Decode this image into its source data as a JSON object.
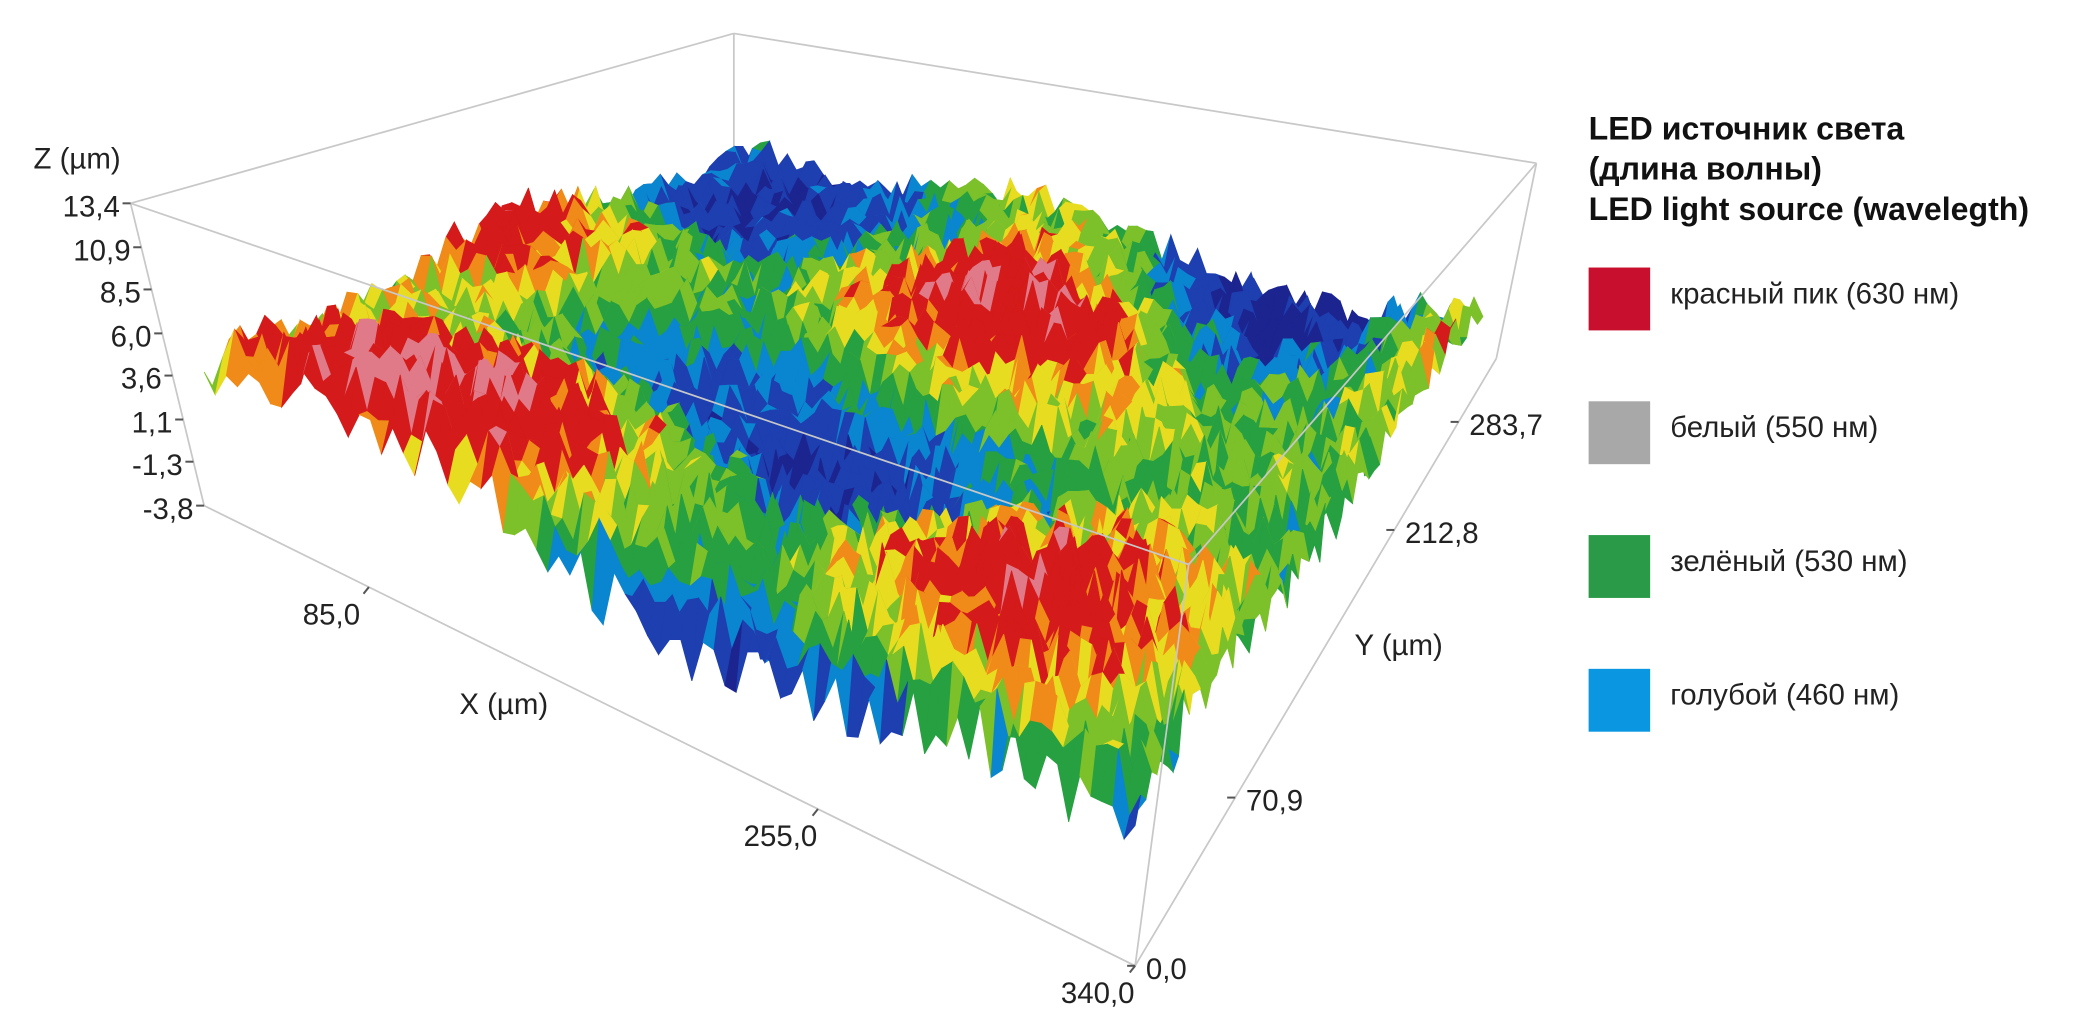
{
  "chart_data": {
    "type": "surface3d",
    "xlabel": "X (µm)",
    "ylabel": "Y (µm)",
    "zlabel": "Z (µm)",
    "xlim": [
      0,
      340
    ],
    "xticks": [
      {
        "value": 85,
        "label": "85,0"
      },
      {
        "value": 255,
        "label": "255,0"
      },
      {
        "value": 340,
        "label": "340,0"
      }
    ],
    "ylim": [
      0,
      330
    ],
    "yticks": [
      {
        "value": 0,
        "label": "0,0"
      },
      {
        "value": 70.9,
        "label": "70,9"
      },
      {
        "value": 212.8,
        "label": "212,8"
      },
      {
        "value": 283.7,
        "label": "283,7"
      }
    ],
    "zlim": [
      -3.8,
      13.4
    ],
    "zticks": [
      {
        "value": 13.4,
        "label": "13,4"
      },
      {
        "value": 10.9,
        "label": "10,9"
      },
      {
        "value": 8.5,
        "label": "8,5"
      },
      {
        "value": 6.0,
        "label": "6,0"
      },
      {
        "value": 3.6,
        "label": "3,6"
      },
      {
        "value": 1.1,
        "label": "1,1"
      },
      {
        "value": -1.3,
        "label": "-1,3"
      },
      {
        "value": -3.8,
        "label": "-3,8"
      }
    ],
    "legend": {
      "title": [
        "LED источник света",
        "(длина волны)",
        "LED light source (wavelegth)"
      ],
      "items": [
        {
          "name": "красный пик (630 нм)",
          "color": "#c8102e"
        },
        {
          "name": "белый (550 нм)",
          "color": "#a8a8a8"
        },
        {
          "name": "зелёный (530 нм)",
          "color": "#2b9a48"
        },
        {
          "name": "голубой (460 нм)",
          "color": "#0a96e0"
        }
      ]
    }
  }
}
